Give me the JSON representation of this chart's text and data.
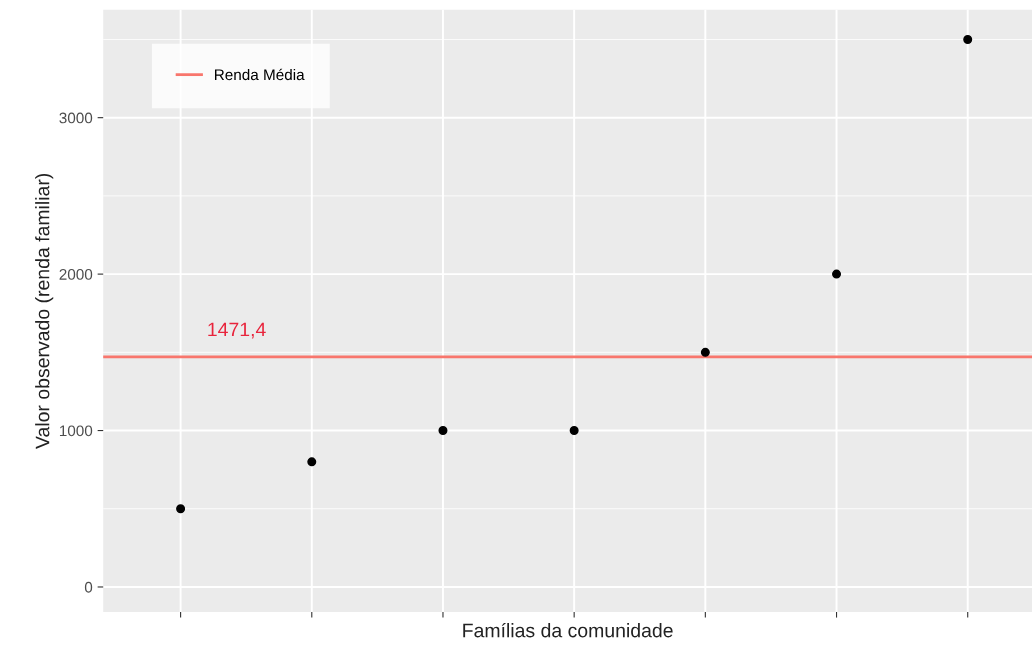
{
  "chart_data": {
    "type": "scatter",
    "xlabel": "Famílias da comunidade",
    "ylabel": "Valor observado (renda familiar)",
    "categories": [
      null,
      null,
      null,
      null,
      null,
      null,
      null
    ],
    "series": [
      {
        "color": "#000000",
        "values": [
          500,
          800,
          1000,
          1000,
          1500,
          2000,
          3500
        ]
      }
    ],
    "ylim": [
      -160,
      3690
    ],
    "yticks": [
      0,
      1000,
      2000,
      3000
    ],
    "ref_lines": [
      {
        "axis": "y",
        "value": 1471.4,
        "label": "Renda Média",
        "color": "#F8766D",
        "line_style": "solid"
      }
    ],
    "annotations": [
      {
        "text": "1471,4",
        "y": 1471.4
      }
    ],
    "grid": true,
    "legend": "top left",
    "marker": "circle",
    "tick_labels": "y"
  }
}
